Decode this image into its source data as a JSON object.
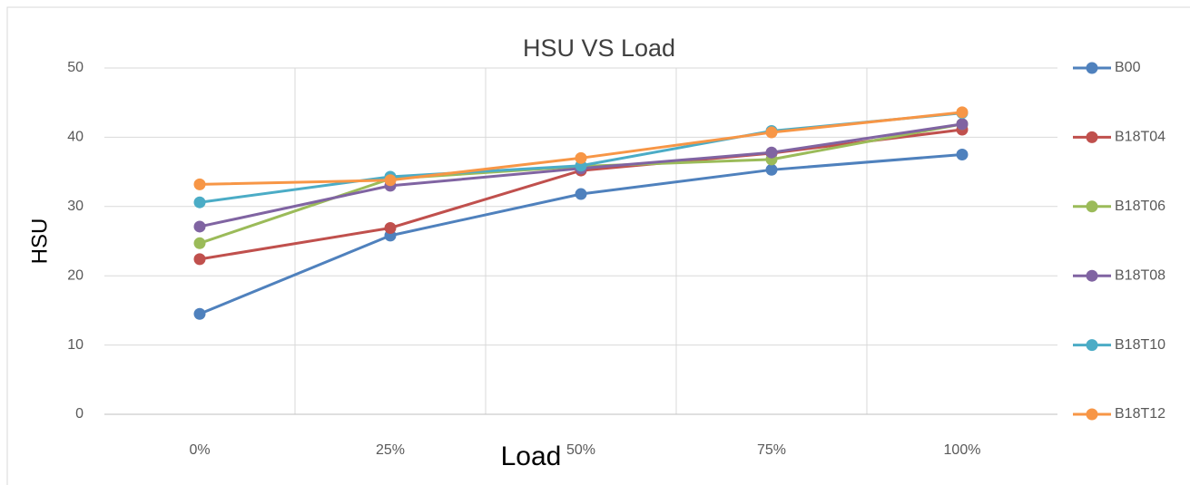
{
  "chart_data": {
    "type": "line",
    "title": "HSU VS Load",
    "x_label": "Load",
    "y_label": "HSU",
    "categories": [
      "0%",
      "25%",
      "50%",
      "75%",
      "100%"
    ],
    "series": [
      {
        "name": "B00",
        "color": "#4f81bd",
        "values": [
          14.5,
          25.8,
          31.8,
          35.3,
          37.5
        ]
      },
      {
        "name": "B18T04",
        "color": "#c0504d",
        "values": [
          22.4,
          26.9,
          35.2,
          37.7,
          41.1
        ]
      },
      {
        "name": "B18T06",
        "color": "#9bbb59",
        "values": [
          24.7,
          34.0,
          35.8,
          36.8,
          41.9
        ]
      },
      {
        "name": "B18T08",
        "color": "#8064a2",
        "values": [
          27.1,
          33.0,
          35.5,
          37.8,
          41.9
        ]
      },
      {
        "name": "B18T10",
        "color": "#4bacc6",
        "values": [
          30.6,
          34.3,
          35.9,
          40.9,
          43.5
        ]
      },
      {
        "name": "B18T12",
        "color": "#f79646",
        "values": [
          33.2,
          33.8,
          37.0,
          40.7,
          43.6
        ]
      }
    ],
    "ylim": [
      0,
      50
    ],
    "yticks": [
      0,
      10,
      20,
      30,
      40,
      50
    ],
    "grid": true,
    "legend": "right"
  }
}
